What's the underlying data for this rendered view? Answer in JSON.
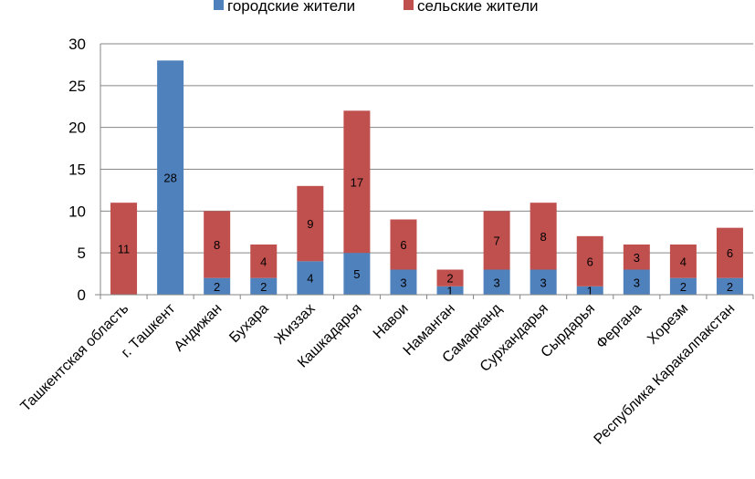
{
  "chart_data": {
    "type": "bar",
    "stacked": true,
    "title": "",
    "xlabel": "",
    "ylabel": "",
    "ylim": [
      0,
      30
    ],
    "yticks": [
      0,
      5,
      10,
      15,
      20,
      25,
      30
    ],
    "grid": true,
    "legend_position": "top",
    "categories": [
      "Ташкентская область",
      "г. Ташкент",
      "Андижан",
      "Бухара",
      "Жиззах",
      "Кашкадарья",
      "Навои",
      "Наманган",
      "Самарканд",
      "Сурхандарья",
      "Сырдарья",
      "Фергана",
      "Хорезм",
      "Республика Каракалпакстан"
    ],
    "series": [
      {
        "name": "городские жители",
        "color": "#4F81BD",
        "values": [
          0,
          28,
          2,
          2,
          4,
          5,
          3,
          1,
          3,
          3,
          1,
          3,
          2,
          2
        ]
      },
      {
        "name": "сельские жители",
        "color": "#C0504D",
        "values": [
          11,
          0,
          8,
          4,
          9,
          17,
          6,
          2,
          7,
          8,
          6,
          3,
          4,
          6
        ]
      }
    ]
  }
}
